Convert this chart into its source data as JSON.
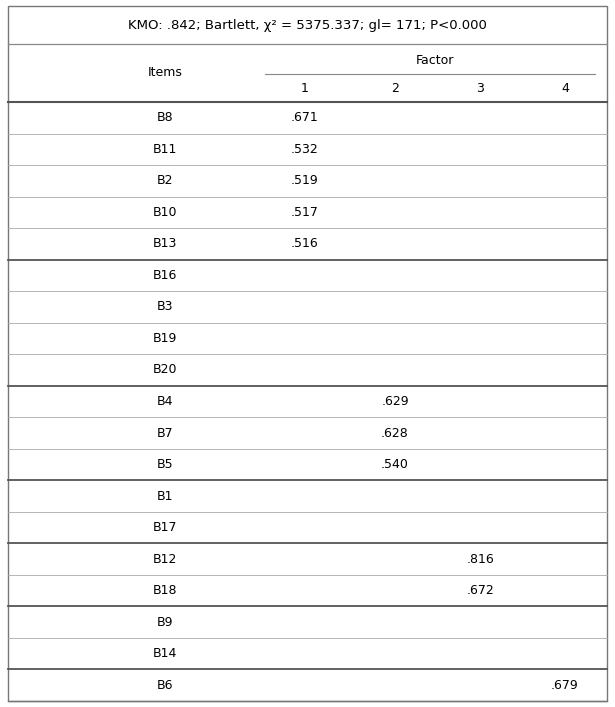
{
  "title": "KMO: .842; Bartlett, χ² = 5375.337; gl= 171; P<0.000",
  "col_header_group": "Factor",
  "rows": [
    {
      "item": "B8",
      "f1": ".671",
      "f2": "",
      "f3": "",
      "f4": ""
    },
    {
      "item": "B11",
      "f1": ".532",
      "f2": "",
      "f3": "",
      "f4": ""
    },
    {
      "item": "B2",
      "f1": ".519",
      "f2": "",
      "f3": "",
      "f4": ""
    },
    {
      "item": "B10",
      "f1": ".517",
      "f2": "",
      "f3": "",
      "f4": ""
    },
    {
      "item": "B13",
      "f1": ".516",
      "f2": "",
      "f3": "",
      "f4": ""
    },
    {
      "item": "B16",
      "f1": "",
      "f2": "",
      "f3": "",
      "f4": ""
    },
    {
      "item": "B3",
      "f1": "",
      "f2": "",
      "f3": "",
      "f4": ""
    },
    {
      "item": "B19",
      "f1": "",
      "f2": "",
      "f3": "",
      "f4": ""
    },
    {
      "item": "B20",
      "f1": "",
      "f2": "",
      "f3": "",
      "f4": ""
    },
    {
      "item": "B4",
      "f1": "",
      "f2": ".629",
      "f3": "",
      "f4": ""
    },
    {
      "item": "B7",
      "f1": "",
      "f2": ".628",
      "f3": "",
      "f4": ""
    },
    {
      "item": "B5",
      "f1": "",
      "f2": ".540",
      "f3": "",
      "f4": ""
    },
    {
      "item": "B1",
      "f1": "",
      "f2": "",
      "f3": "",
      "f4": ""
    },
    {
      "item": "B17",
      "f1": "",
      "f2": "",
      "f3": "",
      "f4": ""
    },
    {
      "item": "B12",
      "f1": "",
      "f2": "",
      "f3": ".816",
      "f4": ""
    },
    {
      "item": "B18",
      "f1": "",
      "f2": "",
      "f3": ".672",
      "f4": ""
    },
    {
      "item": "B9",
      "f1": "",
      "f2": "",
      "f3": "",
      "f4": ""
    },
    {
      "item": "B14",
      "f1": "",
      "f2": "",
      "f3": "",
      "f4": ""
    },
    {
      "item": "B6",
      "f1": "",
      "f2": "",
      "f3": "",
      "f4": ".679"
    }
  ],
  "thick_lines_after": [
    4,
    8,
    11,
    13,
    15,
    17
  ],
  "bg_color": "#ffffff",
  "text_color": "#000000",
  "font_size": 9.0,
  "title_font_size": 9.5
}
